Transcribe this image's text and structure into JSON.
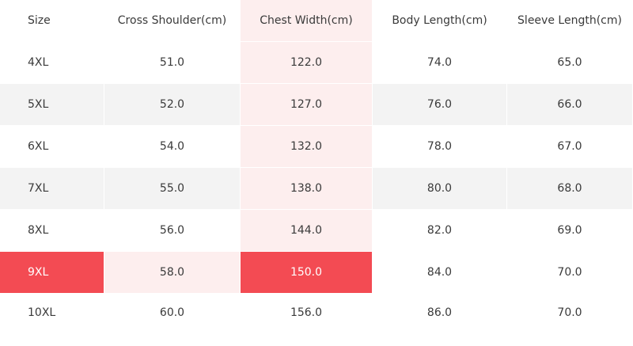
{
  "table": {
    "headers": [
      "Size",
      "Cross Shoulder(cm)",
      "Chest Width(cm)",
      "Body Length(cm)",
      "Sleeve Length(cm)"
    ],
    "rows": [
      [
        "4XL",
        "51.0",
        "122.0",
        "74.0",
        "65.0"
      ],
      [
        "5XL",
        "52.0",
        "127.0",
        "76.0",
        "66.0"
      ],
      [
        "6XL",
        "54.0",
        "132.0",
        "78.0",
        "67.0"
      ],
      [
        "7XL",
        "55.0",
        "138.0",
        "80.0",
        "68.0"
      ],
      [
        "8XL",
        "56.0",
        "144.0",
        "82.0",
        "69.0"
      ],
      [
        "9XL",
        "58.0",
        "150.0",
        "84.0",
        "70.0"
      ],
      [
        "10XL",
        "60.0",
        "156.0",
        "86.0",
        "70.0"
      ]
    ]
  },
  "colors": {
    "highlight": "#f34b53",
    "highlight_tint": "#fdeeee",
    "row_shade": "#f3f3f3"
  }
}
